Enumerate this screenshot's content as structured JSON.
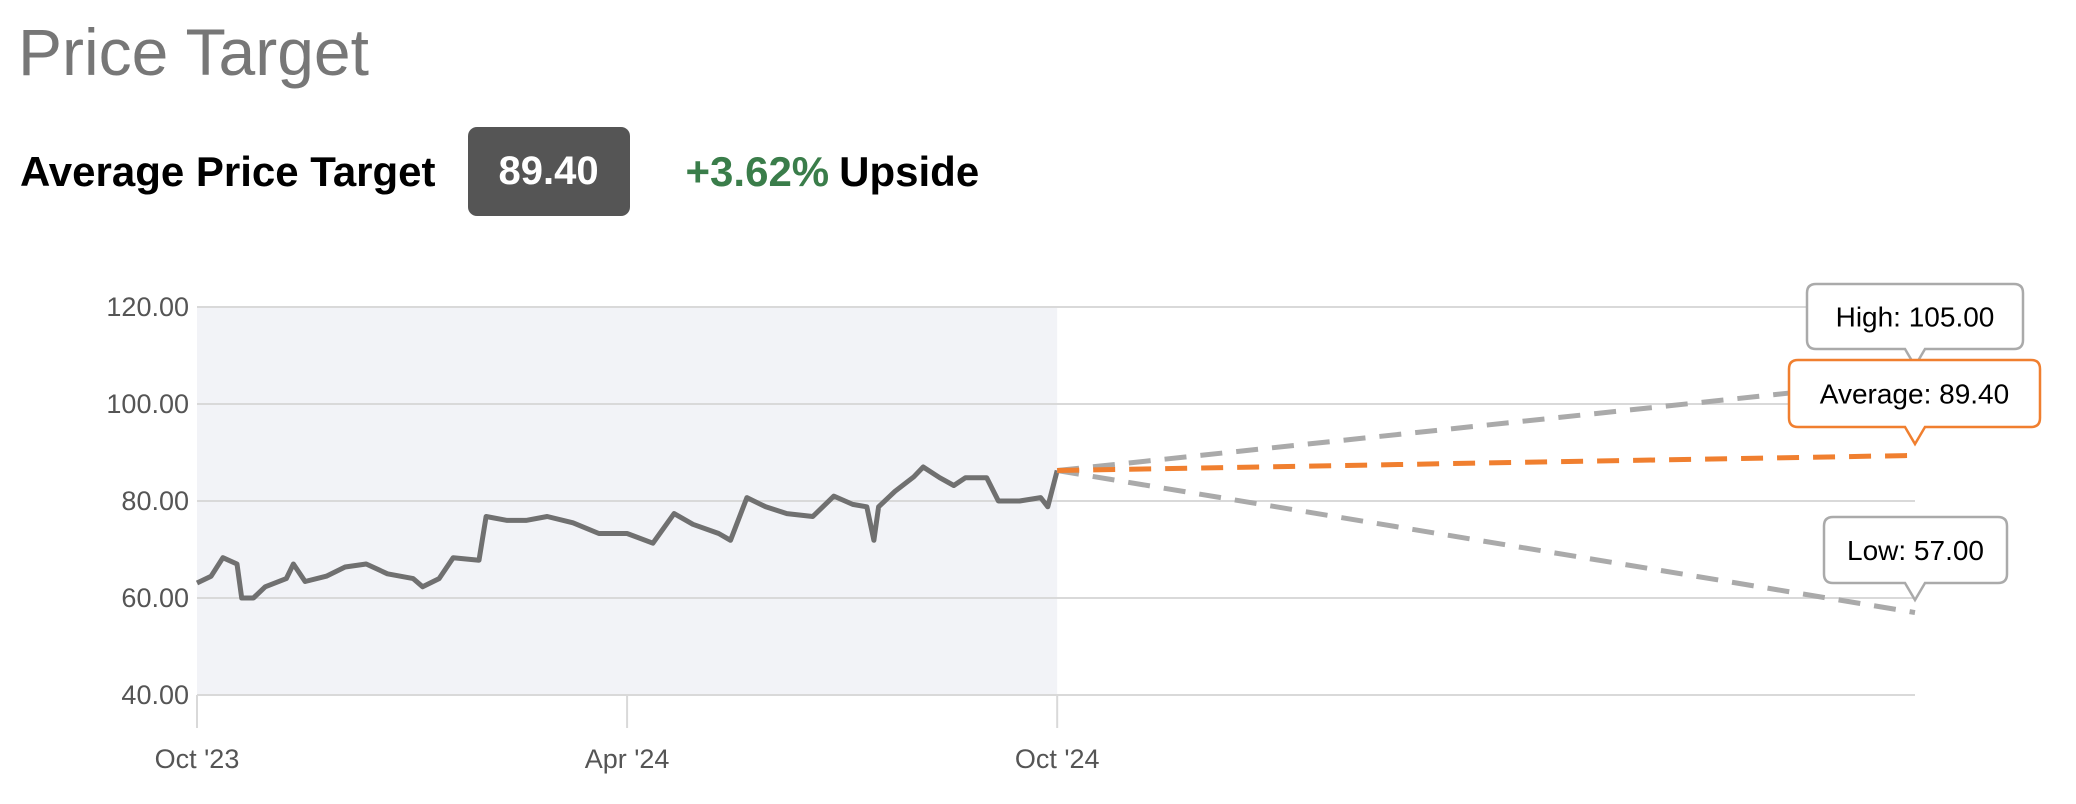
{
  "header": {
    "title": "Price Target",
    "average_label": "Average Price Target",
    "average_value": "89.40",
    "upside_pct": "+3.62%",
    "upside_word": "Upside"
  },
  "colors": {
    "price_line": "#707070",
    "average": "#f07f2f",
    "high_low": "#aaaaaa",
    "history_bg": "#f2f3f7",
    "upside": "#3a7d4a",
    "badge": "#555555"
  },
  "chart_data": {
    "type": "line",
    "ylim": [
      40,
      120
    ],
    "yticks": [
      "40.00",
      "60.00",
      "80.00",
      "100.00",
      "120.00"
    ],
    "ytick_values": [
      40,
      60,
      80,
      100,
      120
    ],
    "xticks": [
      {
        "label": "Oct '23",
        "date": "2023-10-01"
      },
      {
        "label": "Apr '24",
        "date": "2024-04-01"
      },
      {
        "label": "Oct '24",
        "date": "2024-10-01"
      }
    ],
    "xlim": [
      "2023-10-01",
      "2025-10-01"
    ],
    "grid": true,
    "history": {
      "x": [
        "2023-10-01",
        "2023-10-07",
        "2023-10-12",
        "2023-10-18",
        "2023-10-20",
        "2023-10-25",
        "2023-10-30",
        "2023-11-08",
        "2023-11-11",
        "2023-11-16",
        "2023-11-25",
        "2023-12-03",
        "2023-12-12",
        "2023-12-21",
        "2024-01-01",
        "2024-01-05",
        "2024-01-12",
        "2024-01-18",
        "2024-01-29",
        "2024-02-01",
        "2024-02-10",
        "2024-02-18",
        "2024-02-27",
        "2024-03-09",
        "2024-03-20",
        "2024-04-01",
        "2024-04-12",
        "2024-04-21",
        "2024-04-29",
        "2024-05-10",
        "2024-05-15",
        "2024-05-22",
        "2024-05-30",
        "2024-06-08",
        "2024-06-19",
        "2024-06-28",
        "2024-07-06",
        "2024-07-12",
        "2024-07-15",
        "2024-07-17",
        "2024-07-24",
        "2024-08-01",
        "2024-08-05",
        "2024-08-12",
        "2024-08-18",
        "2024-08-23",
        "2024-09-01",
        "2024-09-06",
        "2024-09-15",
        "2024-09-24",
        "2024-09-27",
        "2024-10-01"
      ],
      "y": [
        63.1,
        64.5,
        68.3,
        67,
        60,
        60,
        62.3,
        64,
        67,
        63.4,
        64.5,
        66.4,
        67,
        65,
        64,
        62.3,
        64,
        68.3,
        67.8,
        76.8,
        76,
        76,
        76.8,
        75.5,
        73.3,
        73.3,
        71.3,
        77.4,
        75.2,
        73.3,
        71.9,
        80.7,
        78.8,
        77.4,
        76.8,
        81,
        79.3,
        78.8,
        71.9,
        78.8,
        82,
        85,
        87,
        84.8,
        83.2,
        84.8,
        84.8,
        80,
        80,
        80.7,
        78.8,
        86.28
      ]
    },
    "projection": {
      "start": {
        "date": "2024-10-01",
        "value": 86.28
      },
      "end_date": "2025-10-01",
      "targets": [
        {
          "key": "high",
          "label": "High: 105.00",
          "value": 105.0
        },
        {
          "key": "average",
          "label": "Average: 89.40",
          "value": 89.4
        },
        {
          "key": "low",
          "label": "Low: 57.00",
          "value": 57.0
        }
      ]
    }
  }
}
